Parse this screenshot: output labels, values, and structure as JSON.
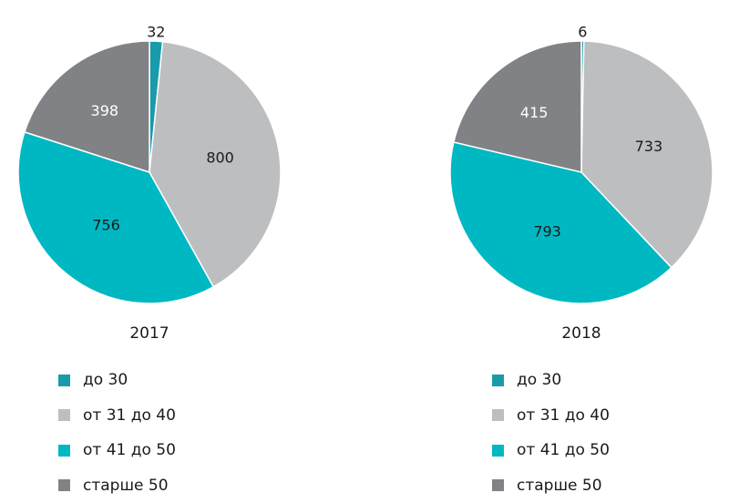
{
  "colors": {
    "do30": "#1a9bab",
    "ot31do40": "#bdbec0",
    "ot41do50": "#00b8c2",
    "starshe50": "#808285",
    "label_dark": "#1a1a1a",
    "label_light": "#ffffff"
  },
  "chart_data": [
    {
      "type": "pie",
      "title": "2017",
      "categories": [
        "до 30",
        "от 31 до 40",
        "от 41 до 50",
        "старше 50"
      ],
      "values": [
        32,
        800,
        756,
        398
      ]
    },
    {
      "type": "pie",
      "title": "2018",
      "categories": [
        "до 30",
        "от 31 до 40",
        "от 41 до 50",
        "старше 50"
      ],
      "values": [
        6,
        733,
        793,
        415
      ]
    }
  ],
  "legend": [
    {
      "items": [
        {
          "label": "до 30",
          "color": "#1a9bab"
        },
        {
          "label": "от 31 до 40",
          "color": "#bdbec0"
        },
        {
          "label": "от 41 до 50",
          "color": "#00b8c2"
        },
        {
          "label": "старше 50",
          "color": "#808285"
        }
      ]
    },
    {
      "items": [
        {
          "label": "до 30",
          "color": "#1a9bab"
        },
        {
          "label": "от 31 до 40",
          "color": "#bdbec0"
        },
        {
          "label": "от 41 до 50",
          "color": "#00b8c2"
        },
        {
          "label": "старше 50",
          "color": "#808285"
        }
      ]
    }
  ]
}
